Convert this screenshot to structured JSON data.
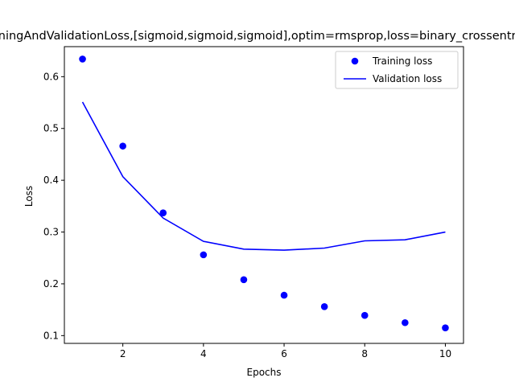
{
  "chart_data": {
    "type": "line",
    "title": "TrainingAndValidationLoss,[sigmoid,sigmoid,sigmoid],optim=rmsprop,loss=binary_crossentropy",
    "xlabel": "Epochs",
    "ylabel": "Loss",
    "xlim": [
      0.55,
      10.45
    ],
    "ylim": [
      0.085,
      0.658
    ],
    "xticks": [
      2,
      4,
      6,
      8,
      10
    ],
    "yticks": [
      0.1,
      0.2,
      0.3,
      0.4,
      0.5,
      0.6
    ],
    "ytick_labels": [
      "0.1",
      "0.2",
      "0.3",
      "0.4",
      "0.5",
      "0.6"
    ],
    "x": [
      1,
      2,
      3,
      4,
      5,
      6,
      7,
      8,
      9,
      10
    ],
    "series": [
      {
        "name": "Training loss",
        "style": "markers",
        "color": "#0000ff",
        "values": [
          0.634,
          0.466,
          0.337,
          0.256,
          0.208,
          0.178,
          0.156,
          0.139,
          0.125,
          0.115
        ]
      },
      {
        "name": "Validation loss",
        "style": "line",
        "color": "#0000ff",
        "values": [
          0.551,
          0.407,
          0.327,
          0.282,
          0.267,
          0.265,
          0.269,
          0.283,
          0.285,
          0.3
        ]
      }
    ],
    "legend": {
      "placement": "upper-right"
    },
    "grid": false
  }
}
